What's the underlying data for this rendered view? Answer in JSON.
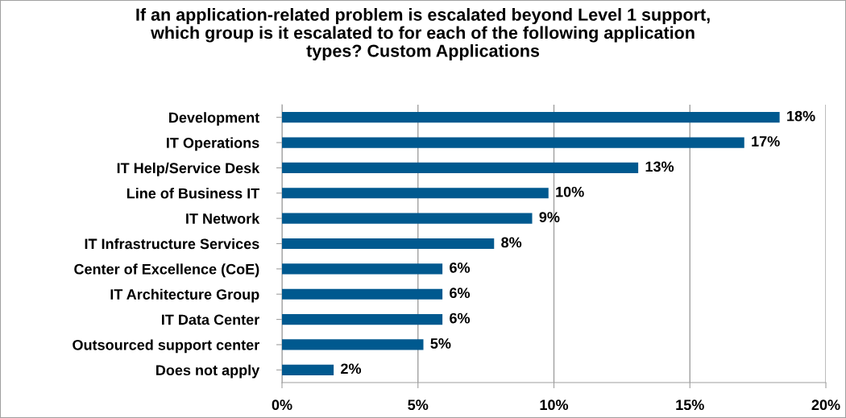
{
  "chart_data": {
    "type": "bar",
    "orientation": "horizontal",
    "title": "If an application-related problem is escalated beyond Level 1 support,\nwhich group is it escalated to for each of the following application\ntypes? Custom Applications",
    "categories": [
      "Development",
      "IT Operations",
      "IT Help/Service Desk",
      "Line of Business IT",
      "IT Network",
      "IT Infrastructure Services",
      "Center of Excellence (CoE)",
      "IT Architecture Group",
      "IT Data Center",
      "Outsourced support center",
      "Does not apply"
    ],
    "values": [
      18.3,
      17.0,
      13.1,
      9.8,
      9.2,
      7.8,
      5.9,
      5.9,
      5.9,
      5.2,
      1.9
    ],
    "value_labels": [
      "18%",
      "17%",
      "13%",
      "10%",
      "9%",
      "8%",
      "6%",
      "6%",
      "6%",
      "5%",
      "2%"
    ],
    "color": "#00598f",
    "xlim": [
      0,
      20
    ],
    "xticks": [
      {
        "value": 0,
        "label": "0%"
      },
      {
        "value": 5,
        "label": "5%"
      },
      {
        "value": 10,
        "label": "10%"
      },
      {
        "value": 15,
        "label": "15%"
      },
      {
        "value": 20,
        "label": "20%"
      }
    ],
    "grid": "x",
    "legend": false
  }
}
